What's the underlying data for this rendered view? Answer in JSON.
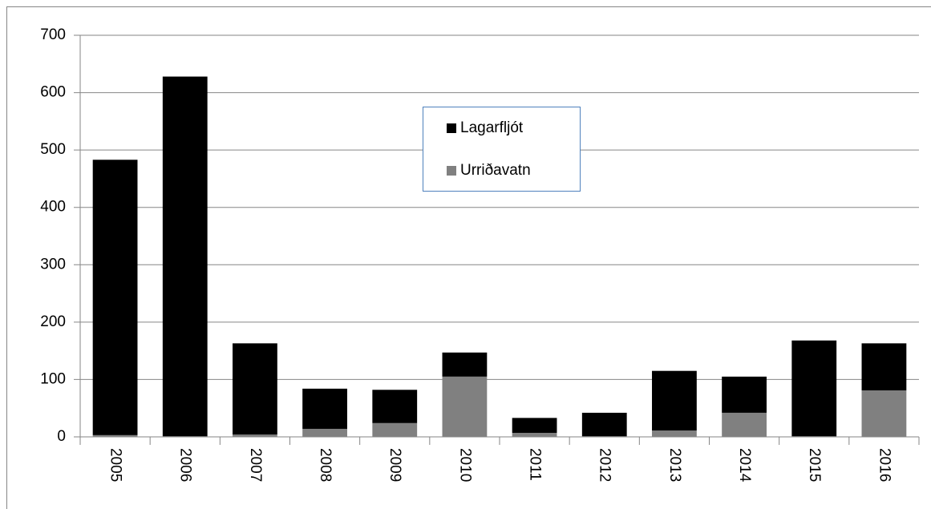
{
  "chart_data": {
    "type": "bar",
    "stacked": true,
    "categories": [
      "2005",
      "2006",
      "2007",
      "2008",
      "2009",
      "2010",
      "2011",
      "2012",
      "2013",
      "2014",
      "2015",
      "2016"
    ],
    "series": [
      {
        "name": "Lagarfljót",
        "color": "#000000",
        "values": [
          480,
          627,
          159,
          70,
          58,
          42,
          26,
          41,
          104,
          63,
          167,
          82
        ]
      },
      {
        "name": "Urriðavatn",
        "color": "#808080",
        "values": [
          3,
          1,
          4,
          14,
          24,
          105,
          7,
          1,
          11,
          42,
          1,
          81
        ]
      }
    ],
    "ylim": [
      0,
      700
    ],
    "yticks": [
      0,
      100,
      200,
      300,
      400,
      500,
      600,
      700
    ],
    "grid": true
  }
}
